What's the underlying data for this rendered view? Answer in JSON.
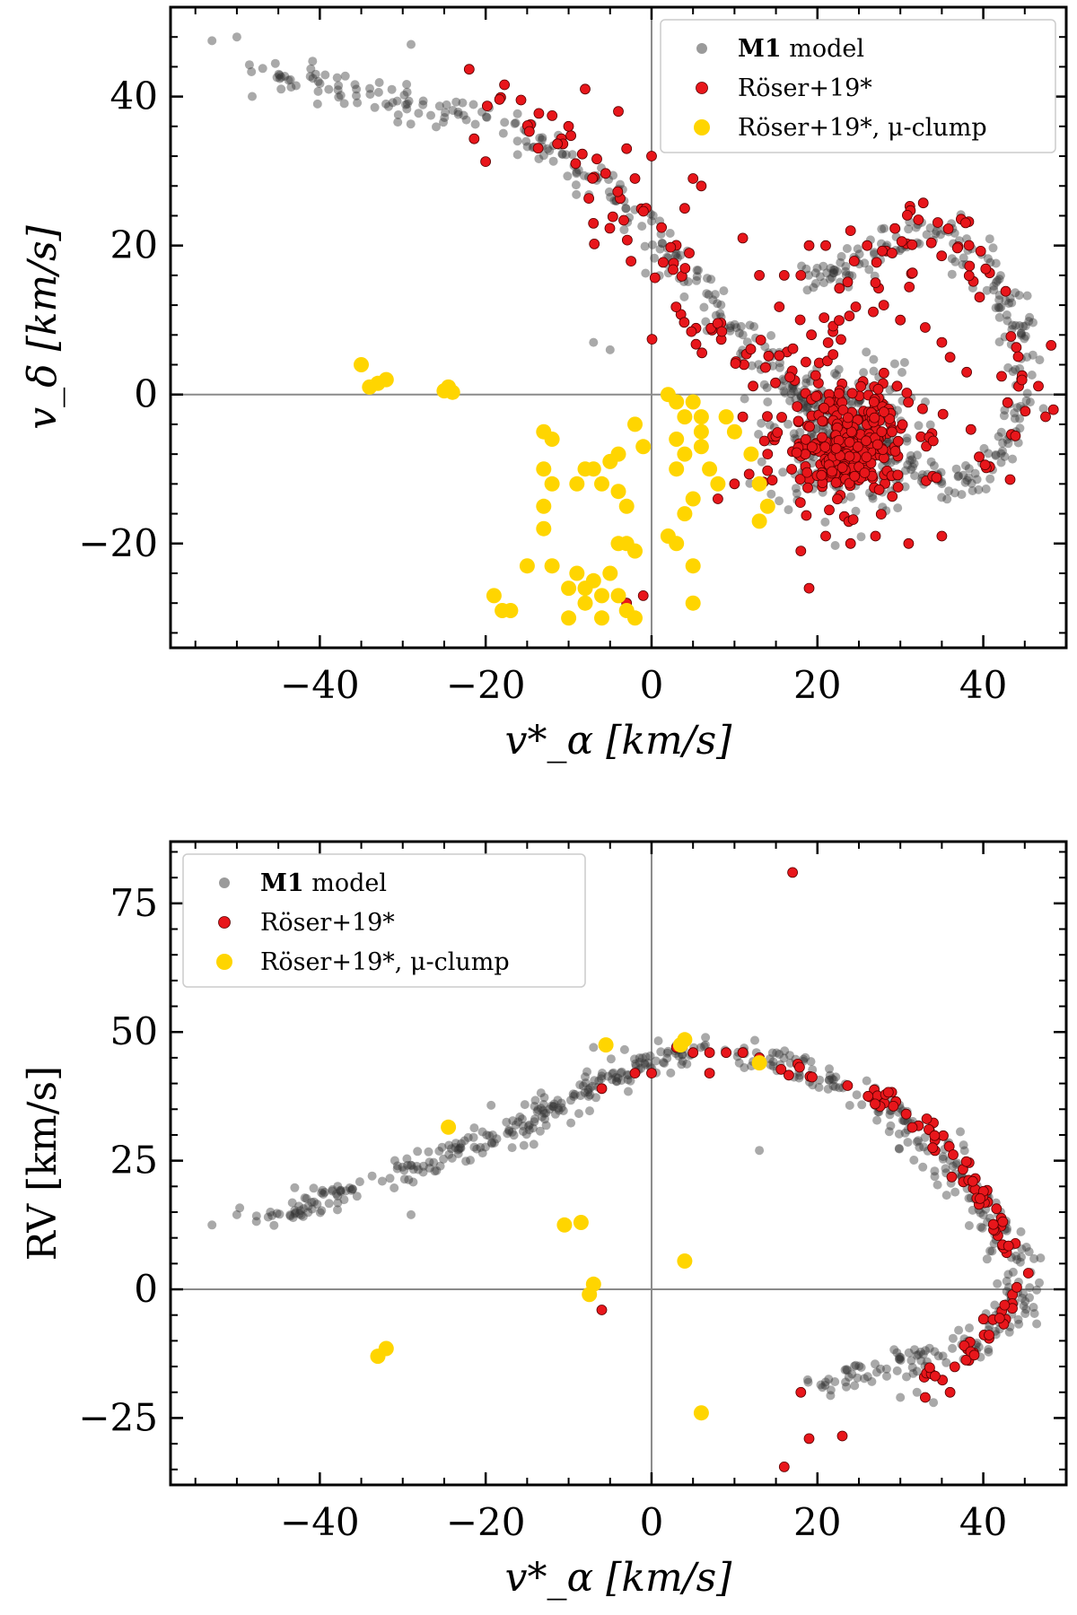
{
  "chart_data": [
    {
      "type": "scatter",
      "title": "",
      "xlabel": "v*_α [km/s]",
      "ylabel": "v_δ [km/s]",
      "xlim": [
        -58,
        50
      ],
      "ylim": [
        -34,
        52
      ],
      "xticks": [
        -40,
        -20,
        0,
        20,
        40
      ],
      "yticks": [
        -20,
        0,
        20,
        40
      ],
      "xtick_labels": [
        "−40",
        "−20",
        "0",
        "20",
        "40"
      ],
      "ytick_labels": [
        "−20",
        "0",
        "20",
        "40"
      ],
      "reference_lines": {
        "x": 0,
        "y": 0
      },
      "legend": {
        "position": "top-right",
        "entries": [
          {
            "bold": "M1",
            "text": " model",
            "color": "#9a9a9a"
          },
          {
            "text": "Röser+19*",
            "color": "#e8161b"
          },
          {
            "text": "Röser+19*, μ-clump",
            "color": "#ffd500"
          }
        ]
      },
      "series": [
        {
          "name": "M1 model",
          "color": "#333333",
          "kind": "cloud",
          "arc": [
            [
              -47,
              43
            ],
            [
              -42,
              42
            ],
            [
              -36,
              41
            ],
            [
              -30,
              39.5
            ],
            [
              -24,
              38
            ],
            [
              -18,
              37
            ],
            [
              -14,
              34
            ],
            [
              -10,
              31
            ],
            [
              -6,
              28
            ],
            [
              -3,
              25
            ],
            [
              0,
              22
            ],
            [
              3,
              18
            ],
            [
              6,
              14
            ],
            [
              9,
              10
            ],
            [
              12,
              6
            ],
            [
              15,
              3
            ],
            [
              18,
              0
            ],
            [
              21,
              -3
            ],
            [
              24,
              -5
            ],
            [
              27,
              -7
            ],
            [
              30,
              -9
            ],
            [
              33,
              -11
            ],
            [
              37,
              -12
            ],
            [
              40,
              -10
            ],
            [
              43,
              -6
            ],
            [
              44.5,
              -1
            ],
            [
              45,
              4
            ],
            [
              44,
              10
            ],
            [
              41,
              16
            ],
            [
              37,
              20
            ],
            [
              33,
              22
            ],
            [
              30,
              21
            ],
            [
              27,
              19
            ],
            [
              24,
              17
            ],
            [
              21,
              16
            ],
            [
              18,
              16
            ]
          ],
          "arc_count": 520,
          "arc_spread": 1.2,
          "clump": {
            "center": [
              23,
              -6
            ],
            "spread": [
              4.5,
              5
            ],
            "count": 280
          },
          "extra_points": [
            [
              -53,
              47.5
            ],
            [
              -50,
              48
            ],
            [
              -29,
              47
            ],
            [
              -7,
              7
            ],
            [
              14,
              -1
            ],
            [
              -5,
              6
            ]
          ]
        },
        {
          "name": "Röser+19*",
          "color": "#e8161b",
          "kind": "cloud",
          "arc": [
            [
              -20,
              40
            ],
            [
              -16,
              39
            ],
            [
              -10,
              33
            ],
            [
              -6,
              28
            ],
            [
              -3,
              24
            ],
            [
              1,
              16
            ],
            [
              4,
              11
            ],
            [
              8,
              8
            ],
            [
              12,
              4
            ],
            [
              16,
              1
            ],
            [
              31,
              24
            ],
            [
              34,
              23
            ],
            [
              37,
              20
            ],
            [
              39,
              16
            ],
            [
              41,
              12
            ],
            [
              43,
              8
            ],
            [
              44,
              4
            ],
            [
              45,
              0
            ],
            [
              44,
              -4
            ],
            [
              42,
              -8
            ],
            [
              39,
              -11
            ]
          ],
          "arc_count": 150,
          "arc_spread": 2.2,
          "clump": {
            "center": [
              23.5,
              -6.5
            ],
            "spread": [
              4,
              4
            ],
            "count": 300
          },
          "extra_points": [
            [
              -8,
              41
            ],
            [
              -4,
              38
            ],
            [
              -3,
              33
            ],
            [
              0,
              32
            ],
            [
              5,
              29
            ],
            [
              -2,
              29
            ],
            [
              6,
              28
            ],
            [
              4,
              25
            ],
            [
              11,
              21
            ],
            [
              13,
              16
            ],
            [
              16,
              16
            ],
            [
              18,
              16
            ],
            [
              19,
              20
            ],
            [
              21,
              20
            ],
            [
              24,
              22
            ],
            [
              26,
              20
            ],
            [
              29,
              19
            ],
            [
              27,
              15
            ],
            [
              28,
              12
            ],
            [
              30,
              10
            ],
            [
              33,
              9
            ],
            [
              35,
              7
            ],
            [
              36,
              5
            ],
            [
              38,
              3
            ],
            [
              19,
              -26
            ],
            [
              18,
              -21
            ],
            [
              21,
              -19
            ],
            [
              24,
              -20
            ],
            [
              27,
              -19
            ],
            [
              31,
              -20
            ],
            [
              35,
              -19
            ],
            [
              8,
              -14
            ],
            [
              10,
              -12
            ],
            [
              14,
              -8
            ],
            [
              11,
              -3
            ],
            [
              -1,
              -27
            ],
            [
              -3,
              -28
            ]
          ]
        },
        {
          "name": "Röser+19*, μ-clump",
          "color": "#ffd500",
          "kind": "points",
          "points": [
            [
              -35,
              4
            ],
            [
              -34,
              1
            ],
            [
              -33,
              1.5
            ],
            [
              -32,
              2
            ],
            [
              -25,
              0.5
            ],
            [
              -24.5,
              1
            ],
            [
              -24,
              0.3
            ],
            [
              -13,
              -5
            ],
            [
              -12,
              -6
            ],
            [
              -13,
              -10
            ],
            [
              -12,
              -12
            ],
            [
              -13,
              -15
            ],
            [
              -13,
              -18
            ],
            [
              -15,
              -23
            ],
            [
              -12,
              -23
            ],
            [
              -19,
              -27
            ],
            [
              -18,
              -29
            ],
            [
              -17,
              -29
            ],
            [
              -10,
              -26
            ],
            [
              -10,
              -30
            ],
            [
              -9,
              -24
            ],
            [
              -8,
              -26
            ],
            [
              -7,
              -25
            ],
            [
              -8,
              -28
            ],
            [
              -6,
              -27
            ],
            [
              -5,
              -24
            ],
            [
              -6,
              -30
            ],
            [
              -4,
              -27
            ],
            [
              -3,
              -29
            ],
            [
              -2,
              -30
            ],
            [
              -8,
              -10
            ],
            [
              -7,
              -10
            ],
            [
              -9,
              -12
            ],
            [
              -6,
              -12
            ],
            [
              -4,
              -13
            ],
            [
              -3,
              -15
            ],
            [
              -4,
              -20
            ],
            [
              -3,
              -20
            ],
            [
              -2,
              -21
            ],
            [
              -5,
              -9
            ],
            [
              -4,
              -8
            ],
            [
              -2,
              -4
            ],
            [
              -1,
              -7
            ],
            [
              2,
              -19
            ],
            [
              3,
              -20
            ],
            [
              3,
              -10
            ],
            [
              4,
              -8
            ],
            [
              5,
              -14
            ],
            [
              4,
              -16
            ],
            [
              3,
              -1
            ],
            [
              2,
              0
            ],
            [
              4,
              -3
            ],
            [
              5,
              -1
            ],
            [
              6,
              -3
            ],
            [
              6,
              -5
            ],
            [
              6,
              -7
            ],
            [
              7,
              -10
            ],
            [
              8,
              -12
            ],
            [
              9,
              -3
            ],
            [
              10,
              -5
            ],
            [
              5,
              -23
            ],
            [
              5,
              -28
            ],
            [
              3,
              -6
            ],
            [
              12,
              -8
            ],
            [
              13,
              -12
            ],
            [
              14,
              -15
            ],
            [
              13,
              -17
            ]
          ]
        }
      ]
    },
    {
      "type": "scatter",
      "title": "",
      "xlabel": "v*_α [km/s]",
      "ylabel": "RV [km/s]",
      "xlim": [
        -58,
        50
      ],
      "ylim": [
        -38,
        87
      ],
      "xticks": [
        -40,
        -20,
        0,
        20,
        40
      ],
      "yticks": [
        -25,
        0,
        25,
        50,
        75
      ],
      "xtick_labels": [
        "−40",
        "−20",
        "0",
        "20",
        "40"
      ],
      "ytick_labels": [
        "−25",
        "0",
        "25",
        "50",
        "75"
      ],
      "reference_lines": {
        "x": 0,
        "y": 0
      },
      "legend": {
        "position": "top-left",
        "entries": [
          {
            "bold": "M1",
            "text": " model",
            "color": "#9a9a9a"
          },
          {
            "text": "Röser+19*",
            "color": "#e8161b"
          },
          {
            "text": "Röser+19*, μ-clump",
            "color": "#ffd500"
          }
        ]
      },
      "series": [
        {
          "name": "M1 model",
          "color": "#333333",
          "kind": "cloud",
          "arc": [
            [
              -47,
              13
            ],
            [
              -42,
              16
            ],
            [
              -36,
              20
            ],
            [
              -30,
              23
            ],
            [
              -24,
              27
            ],
            [
              -18,
              30
            ],
            [
              -12,
              35
            ],
            [
              -6,
              40
            ],
            [
              -1,
              44
            ],
            [
              4,
              46
            ],
            [
              9,
              46
            ],
            [
              14,
              45
            ],
            [
              19,
              42
            ],
            [
              24,
              39
            ],
            [
              29,
              35
            ],
            [
              33,
              29
            ],
            [
              37,
              22
            ],
            [
              40,
              15
            ],
            [
              43,
              9
            ],
            [
              44.5,
              3
            ],
            [
              44.5,
              -2
            ],
            [
              42,
              -7
            ],
            [
              38,
              -11
            ],
            [
              33,
              -13
            ],
            [
              28,
              -15
            ],
            [
              23,
              -17
            ],
            [
              20,
              -17.5
            ]
          ],
          "arc_count": 560,
          "arc_spread": 1.4,
          "extra_points": [
            [
              -53,
              12.5
            ],
            [
              -50,
              14.5
            ],
            [
              -29,
              14.5
            ],
            [
              -7,
              47
            ],
            [
              13,
              27
            ],
            [
              32,
              -20
            ],
            [
              34,
              -22
            ],
            [
              30,
              -21
            ]
          ]
        },
        {
          "name": "Röser+19*",
          "color": "#e8161b",
          "kind": "cloud",
          "arc": [
            [
              16,
              42
            ],
            [
              20,
              41
            ],
            [
              24,
              40
            ],
            [
              28,
              37
            ],
            [
              31,
              34
            ],
            [
              34,
              30
            ],
            [
              37,
              25
            ],
            [
              40,
              17
            ],
            [
              42,
              11
            ],
            [
              44,
              5
            ],
            [
              44.5,
              0
            ],
            [
              44,
              -2
            ],
            [
              41,
              -7
            ],
            [
              38,
              -12
            ],
            [
              35,
              -15
            ],
            [
              33,
              -17
            ]
          ],
          "arc_count": 95,
          "arc_spread": 0.8,
          "extra_points": [
            [
              17,
              81
            ],
            [
              -6,
              39
            ],
            [
              -2,
              42
            ],
            [
              0,
              42
            ],
            [
              3,
              47
            ],
            [
              5,
              46
            ],
            [
              7,
              46
            ],
            [
              9,
              46
            ],
            [
              11,
              46
            ],
            [
              13,
              45
            ],
            [
              -6,
              -4
            ],
            [
              18,
              -20
            ],
            [
              19,
              -29
            ],
            [
              23,
              -28.5
            ],
            [
              16,
              -34.5
            ],
            [
              33,
              -21
            ],
            [
              36,
              -20
            ],
            [
              7,
              42
            ]
          ]
        },
        {
          "name": "Röser+19*, μ-clump",
          "color": "#ffd500",
          "kind": "points",
          "points": [
            [
              -33,
              -13
            ],
            [
              -32,
              -11.5
            ],
            [
              -24.5,
              31.5
            ],
            [
              -10.5,
              12.5
            ],
            [
              -8.5,
              13
            ],
            [
              -7.5,
              -1
            ],
            [
              -7,
              1
            ],
            [
              -5.5,
              47.5
            ],
            [
              3.5,
              47.5
            ],
            [
              4,
              48.5
            ],
            [
              13,
              44
            ],
            [
              4,
              5.5
            ],
            [
              6,
              -24
            ]
          ]
        }
      ]
    }
  ]
}
